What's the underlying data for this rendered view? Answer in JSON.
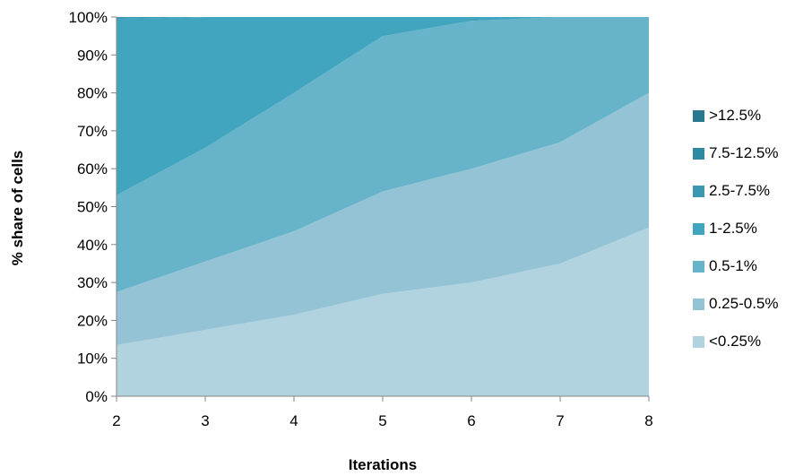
{
  "chart_data": {
    "type": "area",
    "stacked": true,
    "normalized": true,
    "title": "",
    "xlabel": "Iterations",
    "ylabel": "% share of cells",
    "x": [
      2,
      3,
      4,
      5,
      6,
      7,
      8
    ],
    "x_ticks": [
      "2",
      "3",
      "4",
      "5",
      "6",
      "7",
      "8"
    ],
    "y_ticks": [
      "0%",
      "10%",
      "20%",
      "30%",
      "40%",
      "50%",
      "60%",
      "70%",
      "80%",
      "90%",
      "100%"
    ],
    "ylim": [
      0,
      100
    ],
    "grid": false,
    "legend_position": "right",
    "series": [
      {
        "name": "<0.25%",
        "color": "#b0d3df",
        "values": [
          13.5,
          17.5,
          21.5,
          27,
          30,
          35,
          44.5
        ]
      },
      {
        "name": "0.25-0.5%",
        "color": "#93c3d5",
        "values": [
          14,
          18,
          22,
          27,
          30,
          32,
          35.5
        ]
      },
      {
        "name": "0.5-1%",
        "color": "#67b4ca",
        "values": [
          25.5,
          30,
          36.5,
          41,
          39,
          33,
          20
        ]
      },
      {
        "name": "1-2.5%",
        "color": "#41a5bf",
        "values": [
          46.5,
          34.5,
          20,
          5,
          1,
          0,
          0
        ]
      },
      {
        "name": "2.5-7.5%",
        "color": "#3a98b0",
        "values": [
          0.5,
          0,
          0,
          0,
          0,
          0,
          0
        ]
      },
      {
        "name": "7.5-12.5%",
        "color": "#2f89a0",
        "values": [
          0,
          0,
          0,
          0,
          0,
          0,
          0
        ]
      },
      {
        "name": ">12.5%",
        "color": "#2a7790",
        "values": [
          0,
          0,
          0,
          0,
          0,
          0,
          0
        ]
      }
    ]
  }
}
